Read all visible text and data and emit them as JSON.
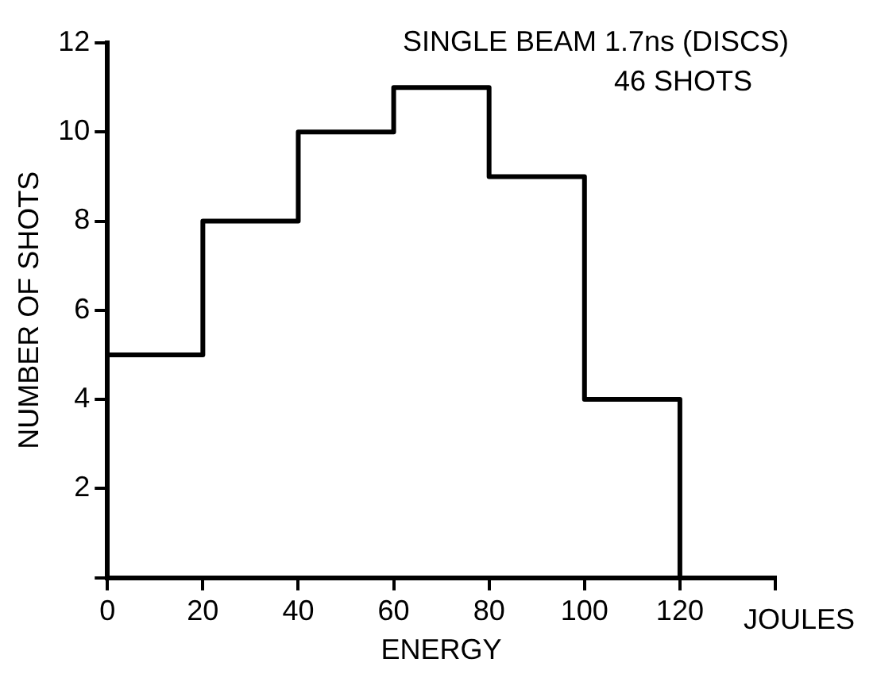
{
  "chart_data": {
    "type": "histogram",
    "title": "SINGLE BEAM 1.7ns (DISCS)",
    "subtitle": "46 SHOTS",
    "xlabel": "ENERGY",
    "ylabel": "NUMBER OF SHOTS",
    "annotations": [
      "JOULES"
    ],
    "bins": [
      0,
      20,
      40,
      60,
      80,
      100,
      120
    ],
    "values": [
      5,
      8,
      10,
      11,
      9,
      4
    ],
    "color": "#000000",
    "xlim": [
      0,
      140
    ],
    "xticks": [
      0,
      20,
      40,
      60,
      80,
      100,
      120,
      {
        "value": 140,
        "label": null
      }
    ],
    "ylim": [
      0,
      12
    ],
    "yticks": [
      {
        "value": 0,
        "label": null
      },
      2,
      4,
      6,
      8,
      10,
      12
    ],
    "grid": false,
    "legend": false
  }
}
